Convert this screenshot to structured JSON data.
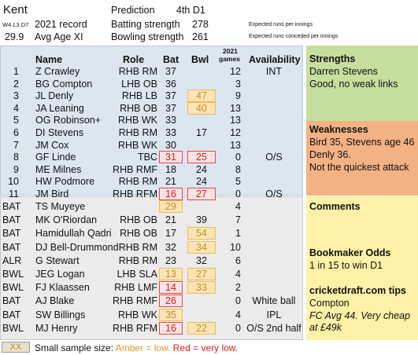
{
  "team": "Kent",
  "record_small": "W4 L3 D7",
  "record_label": "2021 record",
  "avg_age_value": "29.9",
  "avg_age_label": "Avg Age XI",
  "prediction_label": "Prediction",
  "prediction_value": "4th D1",
  "batting_strength_label": "Batting strength",
  "batting_strength_value": "278",
  "bowling_strength_label": "Bowling strength",
  "bowling_strength_value": "261",
  "note_runs_scored": "Expected runs per innings",
  "note_runs_conceded": "Expected runs conceded per innings",
  "columns": {
    "name": "Name",
    "role": "Role",
    "bat": "Bat",
    "bwl": "Bwl",
    "games_top": "2021",
    "games_bottom": "games",
    "availability": "Availability"
  },
  "xi": [
    {
      "n": "1",
      "name": "Z Crawley",
      "role": "RHB RM",
      "bat": "37",
      "bwl": "",
      "games": "12",
      "avail": "INT",
      "bat_flag": "",
      "bwl_flag": ""
    },
    {
      "n": "2",
      "name": "BG Compton",
      "role": "LHB OB",
      "bat": "36",
      "bwl": "",
      "games": "3",
      "avail": "",
      "bat_flag": "",
      "bwl_flag": ""
    },
    {
      "n": "3",
      "name": "JL Denly",
      "role": "RHB LB",
      "bat": "37",
      "bwl": "47",
      "games": "9",
      "avail": "",
      "bat_flag": "",
      "bwl_flag": "amber"
    },
    {
      "n": "4",
      "name": "JA Leaning",
      "role": "RHB OB",
      "bat": "37",
      "bwl": "40",
      "games": "13",
      "avail": "",
      "bat_flag": "",
      "bwl_flag": "amber"
    },
    {
      "n": "5",
      "name": "OG Robinson+",
      "role": "RHB WK",
      "bat": "33",
      "bwl": "",
      "games": "13",
      "avail": "",
      "bat_flag": "",
      "bwl_flag": ""
    },
    {
      "n": "6",
      "name": "DI Stevens",
      "role": "RHB RM",
      "bat": "33",
      "bwl": "17",
      "games": "12",
      "avail": "",
      "bat_flag": "",
      "bwl_flag": ""
    },
    {
      "n": "7",
      "name": "JM Cox",
      "role": "RHB WK",
      "bat": "30",
      "bwl": "",
      "games": "13",
      "avail": "",
      "bat_flag": "",
      "bwl_flag": ""
    },
    {
      "n": "8",
      "name": "GF Linde",
      "role": "TBC",
      "bat": "31",
      "bwl": "25",
      "games": "0",
      "avail": "O/S",
      "bat_flag": "red",
      "bwl_flag": "red"
    },
    {
      "n": "9",
      "name": "ME Milnes",
      "role": "RHB RMF",
      "bat": "18",
      "bwl": "24",
      "games": "8",
      "avail": "",
      "bat_flag": "",
      "bwl_flag": ""
    },
    {
      "n": "10",
      "name": "HW Podmore",
      "role": "RHB RM",
      "bat": "21",
      "bwl": "24",
      "games": "5",
      "avail": "",
      "bat_flag": "",
      "bwl_flag": ""
    },
    {
      "n": "11",
      "name": "JM Bird",
      "role": "RHB RFM",
      "bat": "16",
      "bwl": "27",
      "games": "0",
      "avail": "O/S",
      "bat_flag": "red",
      "bwl_flag": "red"
    }
  ],
  "squad": [
    {
      "n": "BAT",
      "name": "TS Muyeye",
      "role": "",
      "bat": "29",
      "bwl": "",
      "games": "4",
      "avail": "",
      "bat_flag": "amber",
      "bwl_flag": ""
    },
    {
      "n": "BAT",
      "name": "MK O'Riordan",
      "role": "RHB OB",
      "bat": "21",
      "bwl": "39",
      "games": "7",
      "avail": "",
      "bat_flag": "",
      "bwl_flag": ""
    },
    {
      "n": "BAT",
      "name": "Hamidullah Qadri",
      "role": "RHB OB",
      "bat": "17",
      "bwl": "54",
      "games": "1",
      "avail": "",
      "bat_flag": "",
      "bwl_flag": "amber"
    },
    {
      "n": "BAT",
      "name": "DJ Bell-Drummond",
      "role": "RHB RM",
      "bat": "32",
      "bwl": "34",
      "games": "10",
      "avail": "",
      "bat_flag": "",
      "bwl_flag": "amber"
    },
    {
      "n": "ALR",
      "name": "G Stewart",
      "role": "RHB RM",
      "bat": "23",
      "bwl": "32",
      "games": "6",
      "avail": "",
      "bat_flag": "",
      "bwl_flag": ""
    },
    {
      "n": "BWL",
      "name": "JEG Logan",
      "role": "LHB SLA",
      "bat": "13",
      "bwl": "27",
      "games": "4",
      "avail": "",
      "bat_flag": "amber",
      "bwl_flag": "amber"
    },
    {
      "n": "BWL",
      "name": "FJ Klaassen",
      "role": "RHB LMF",
      "bat": "14",
      "bwl": "33",
      "games": "2",
      "avail": "",
      "bat_flag": "red",
      "bwl_flag": "amber"
    },
    {
      "n": "BAT",
      "name": "AJ Blake",
      "role": "RHB RMF",
      "bat": "26",
      "bwl": "",
      "games": "0",
      "avail": "White ball",
      "bat_flag": "red",
      "bwl_flag": ""
    },
    {
      "n": "BAT",
      "name": "SW Billings",
      "role": "RHB WK",
      "bat": "35",
      "bwl": "",
      "games": "4",
      "avail": "IPL",
      "bat_flag": "amber",
      "bwl_flag": ""
    },
    {
      "n": "BWL",
      "name": "MJ Henry",
      "role": "RHB RFM",
      "bat": "16",
      "bwl": "22",
      "games": "0",
      "avail": "O/S 2nd half",
      "bat_flag": "red",
      "bwl_flag": "amber"
    }
  ],
  "strengths": {
    "title": "Strengths",
    "lines": [
      "Darren Stevens",
      "Good, no weak links"
    ]
  },
  "weaknesses": {
    "title": "Weaknesses",
    "lines": [
      "Bird 35, Stevens age 46",
      "Denly 36.",
      "Not the quickest attack"
    ]
  },
  "comments": {
    "title": "Comments"
  },
  "odds": {
    "title": "Bookmaker Odds",
    "line": "1 in 15 to win D1"
  },
  "tips": {
    "title": "cricketdraft.com tips",
    "pick": "Compton",
    "note_lines": [
      "FC Avg 44. Very cheap",
      "at £49k"
    ]
  },
  "legend": {
    "swatch": "XX",
    "lead": "Small sample size: ",
    "amber": "Amber = low.",
    "red": "Red = very low."
  },
  "colors": {
    "blue_panel": "#dce6f1",
    "grey_panel": "#ebebeb",
    "strengths": "#c5df9f",
    "weaknesses": "#f4b183",
    "comments": "#fff2a8",
    "amber": "#f0b95b",
    "red": "#e04848"
  }
}
